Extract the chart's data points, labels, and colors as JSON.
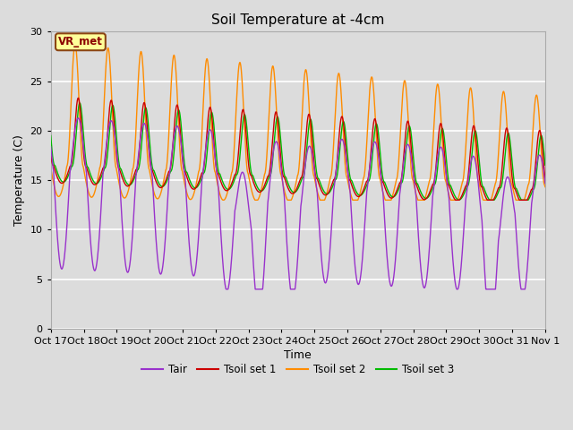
{
  "title": "Soil Temperature at -4cm",
  "xlabel": "Time",
  "ylabel": "Temperature (C)",
  "ylim": [
    0,
    30
  ],
  "yticks": [
    0,
    5,
    10,
    15,
    20,
    25,
    30
  ],
  "fig_bg": "#dcdcdc",
  "plot_bg": "#dcdcdc",
  "annotation_text": "VR_met",
  "annotation_bg": "#ffff99",
  "annotation_border": "#8B4513",
  "colors": {
    "Tair": "#9932CC",
    "Tsoil1": "#cc0000",
    "Tsoil2": "#ff8c00",
    "Tsoil3": "#00bb00"
  },
  "legend_labels": [
    "Tair",
    "Tsoil set 1",
    "Tsoil set 2",
    "Tsoil set 3"
  ],
  "xtick_labels": [
    "Oct 17",
    "Oct 18",
    "Oct 19",
    "Oct 20",
    "Oct 21",
    "Oct 22",
    "Oct 23",
    "Oct 24",
    "Oct 25",
    "Oct 26",
    "Oct 27",
    "Oct 28",
    "Oct 29",
    "Oct 30",
    "Oct 31",
    "Nov 1"
  ],
  "n_days": 15,
  "pts_per_day": 144
}
